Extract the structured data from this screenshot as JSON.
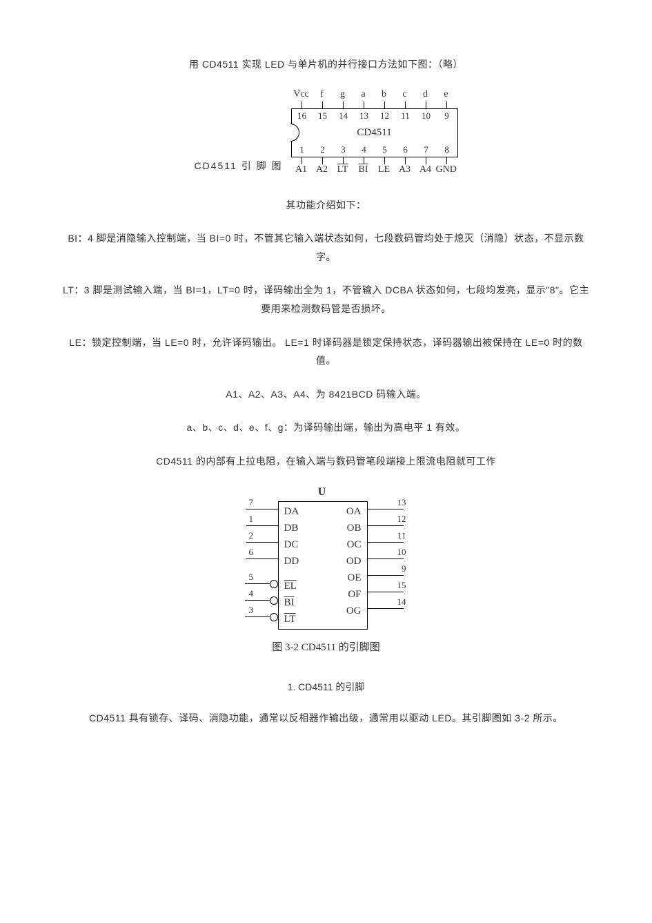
{
  "intro_line": "用 CD4511 实现 LED 与单片机的并行接口方法如下图：（略）",
  "chip1": {
    "caption": "CD4511 引 脚 图",
    "top_labels": [
      "Vcc",
      "f",
      "g",
      "a",
      "b",
      "c",
      "d",
      "e"
    ],
    "top_nums": [
      "16",
      "15",
      "14",
      "13",
      "12",
      "11",
      "10",
      "9"
    ],
    "center": "CD4511",
    "bottom_nums": [
      "1",
      "2",
      "3",
      "4",
      "5",
      "6",
      "7",
      "8"
    ],
    "bottom_labels": [
      "A1",
      "A2",
      "LT",
      "BI",
      "LE",
      "A3",
      "A4",
      "GND"
    ],
    "bottom_overline_idx": [
      2,
      3
    ]
  },
  "func_heading": "其功能介绍如下：",
  "p_bi": "BI：4 脚是消隐输入控制端，当 BI=0 时，不管其它输入端状态如何，七段数码管均处于熄灭（消隐）状态，不显示数字。",
  "p_lt": "LT：3 脚是测试输入端，当 BI=1，LT=0 时，译码输出全为 1，不管输入 DCBA 状态如何，七段均发亮，显示\"8\"。它主要用来检测数码管是否损坏。",
  "p_le": "LE：锁定控制端，当 LE=0 时，允许译码输出。 LE=1 时译码器是锁定保持状态，译码器输出被保持在 LE=0 时的数值。",
  "p_a": "A1、A2、A3、A4、为 8421BCD 码输入端。",
  "p_seg": "a、b、c、d、e、f、g：为译码输出端，输出为高电平 1 有效。",
  "p_pullup": "CD4511 的内部有上拉电阻，在输入端与数码管笔段端接上限流电阻就可工作",
  "chip2": {
    "u_label": "U",
    "left": [
      {
        "num": "7",
        "lab": "DA"
      },
      {
        "num": "1",
        "lab": "DB"
      },
      {
        "num": "2",
        "lab": "DC"
      },
      {
        "num": "6",
        "lab": "DD"
      },
      {
        "gap": true
      },
      {
        "num": "5",
        "lab": "EL",
        "over": true,
        "bubble": true
      },
      {
        "num": "4",
        "lab": "BI",
        "over": true,
        "bubble": true
      },
      {
        "num": "3",
        "lab": "LT",
        "over": true,
        "bubble": true
      }
    ],
    "right": [
      {
        "num": "13",
        "lab": "OA"
      },
      {
        "num": "12",
        "lab": "OB"
      },
      {
        "num": "11",
        "lab": "OC"
      },
      {
        "num": "10",
        "lab": "OD"
      },
      {
        "num": "9",
        "lab": "OE"
      },
      {
        "num": "15",
        "lab": "OF"
      },
      {
        "num": "14",
        "lab": "OG"
      }
    ],
    "caption": "图 3-2 CD4511 的引脚图"
  },
  "section_1_title": "1. CD4511 的引脚",
  "p_desc": "CD4511 具有锁存、译码、消隐功能，通常以反相器作输出级，通常用以驱动 LED。其引脚图如 3-2 所示。",
  "colors": {
    "text": "#333333",
    "line": "#000000",
    "bg": "#ffffff"
  }
}
